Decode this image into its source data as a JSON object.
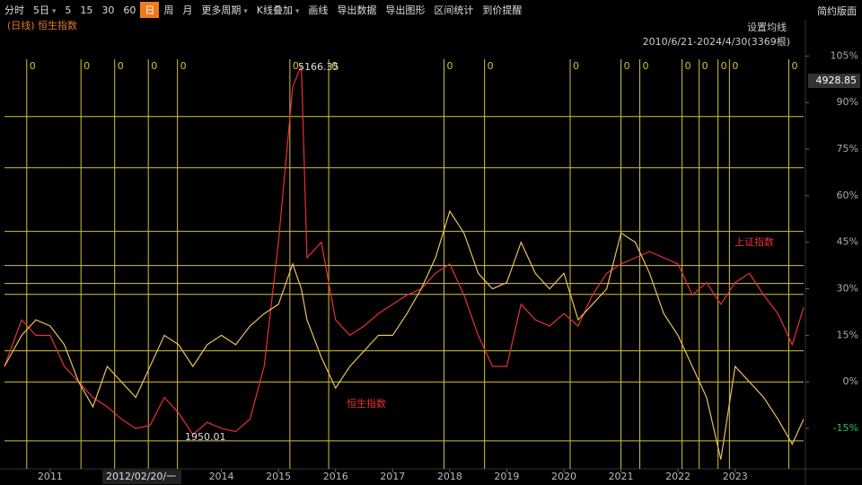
{
  "toolbar": {
    "items": [
      "分时",
      "5日",
      "5",
      "15",
      "30",
      "60",
      "日",
      "周",
      "月",
      "更多周期",
      "K线叠加",
      "画线",
      "导出数据",
      "导出图形",
      "区间统计",
      "到价提醒"
    ],
    "active": 6,
    "dropdowns": [
      1,
      9,
      10
    ],
    "right": "简约版面"
  },
  "chart_data": {
    "type": "line",
    "period_label": "(日线)",
    "title": "恒生指数",
    "ma_button": "设置均线",
    "range_label": "2010/6/21-2024/4/30(3369根)",
    "current_value": "4928.85",
    "high_label": "5166.35",
    "low_label": "1950.01",
    "crosshair_label": "2012/02/20/一",
    "series_labels": [
      "恒生指数",
      "上证指数"
    ],
    "x": [
      2010.2,
      2010.5,
      2010.75,
      2011,
      2011.25,
      2011.5,
      2011.75,
      2012,
      2012.25,
      2012.5,
      2012.75,
      2013,
      2013.25,
      2013.5,
      2013.75,
      2014,
      2014.25,
      2014.5,
      2014.75,
      2015,
      2015.25,
      2015.4,
      2015.5,
      2015.75,
      2016,
      2016.25,
      2016.5,
      2016.75,
      2017,
      2017.25,
      2017.5,
      2017.75,
      2018,
      2018.25,
      2018.5,
      2018.75,
      2019,
      2019.25,
      2019.5,
      2019.75,
      2020,
      2020.25,
      2020.5,
      2020.75,
      2021,
      2021.25,
      2021.5,
      2021.75,
      2022,
      2022.25,
      2022.5,
      2022.75,
      2023,
      2023.25,
      2023.5,
      2023.75,
      2024,
      2024.2
    ],
    "series": [
      {
        "name": "恒生指数",
        "color": "#e8c060",
        "values": [
          5,
          15,
          20,
          18,
          12,
          0,
          -8,
          5,
          0,
          -5,
          5,
          15,
          12,
          5,
          12,
          15,
          12,
          18,
          22,
          25,
          38,
          30,
          20,
          8,
          -2,
          5,
          10,
          15,
          15,
          22,
          30,
          40,
          55,
          48,
          35,
          30,
          32,
          45,
          35,
          30,
          35,
          20,
          25,
          30,
          48,
          45,
          35,
          22,
          15,
          5,
          -5,
          -25,
          5,
          0,
          -5,
          -12,
          -20,
          -12
        ]
      },
      {
        "name": "上证指数",
        "color": "#e8303a",
        "values": [
          5,
          20,
          15,
          15,
          5,
          0,
          -5,
          -8,
          -12,
          -15,
          -14,
          -5,
          -10,
          -17,
          -13,
          -15,
          -16,
          -12,
          5,
          45,
          95,
          102,
          40,
          45,
          20,
          15,
          18,
          22,
          25,
          28,
          30,
          35,
          38,
          28,
          15,
          5,
          5,
          25,
          20,
          18,
          22,
          18,
          28,
          35,
          38,
          40,
          42,
          40,
          38,
          28,
          32,
          25,
          32,
          35,
          28,
          22,
          12,
          24
        ]
      }
    ],
    "xlim": [
      2010.2,
      2024.2
    ],
    "xticks": [
      2011,
      2014,
      2015,
      2016,
      2017,
      2018,
      2019,
      2020,
      2021,
      2022,
      2023
    ],
    "ylim": [
      -28,
      108
    ],
    "yticks": [
      {
        "value": 105,
        "label": "105%"
      },
      {
        "value": 90,
        "label": "90%"
      },
      {
        "value": 75,
        "label": "75%"
      },
      {
        "value": 60,
        "label": "60%"
      },
      {
        "value": 45,
        "label": "45%"
      },
      {
        "value": 30,
        "label": "30%"
      },
      {
        "value": 15,
        "label": "15%"
      },
      {
        "value": 0,
        "label": "0%"
      },
      {
        "value": -15,
        "label": "-15%"
      }
    ],
    "negative_tick_color": "#22c55e",
    "hlines": [
      85.5,
      69,
      48.5,
      37.5,
      31.7,
      28.2,
      10,
      0,
      -19
    ],
    "vlines": [
      2010.59,
      2011.54,
      2012.13,
      2012.72,
      2013.23,
      2015.2,
      2015.88,
      2017.9,
      2018.61,
      2020.11,
      2021.0,
      2021.33,
      2022.07,
      2022.37,
      2022.7,
      2022.9,
      2023.94
    ],
    "vline_label": "0",
    "guide_color": "#d4c23a"
  }
}
